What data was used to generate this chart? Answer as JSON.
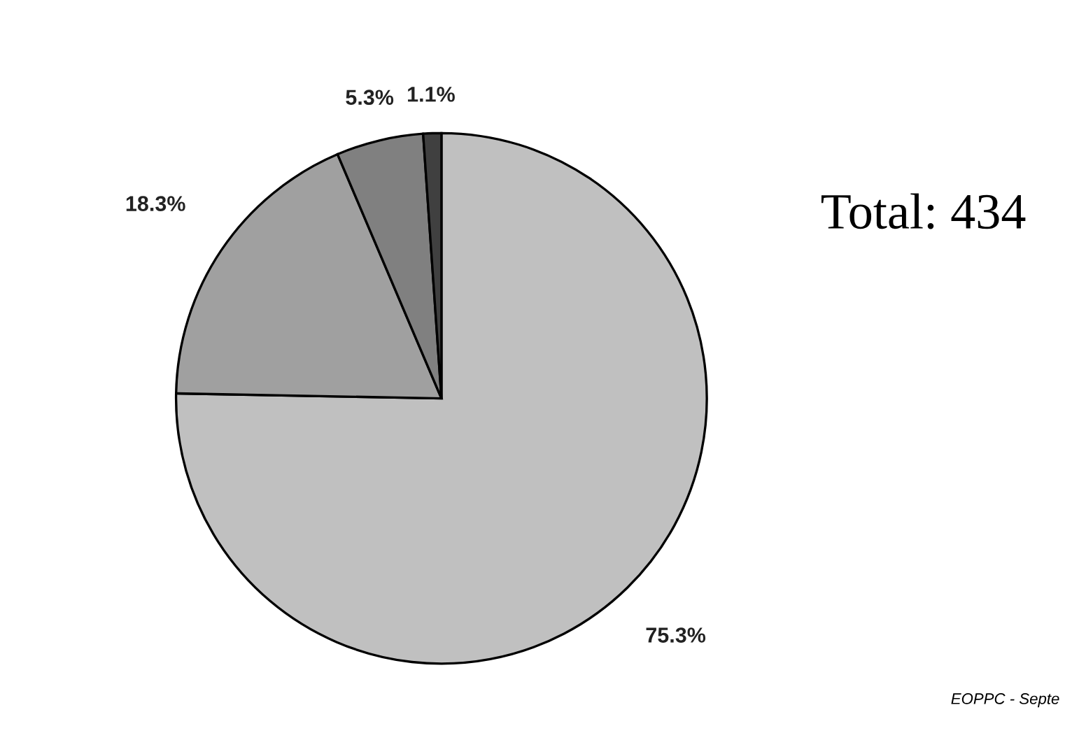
{
  "chart_data": {
    "type": "pie",
    "categories": [
      null,
      null,
      null,
      null
    ],
    "values": [
      75.3,
      18.3,
      5.3,
      1.1
    ],
    "colors": [
      "#c0c0c0",
      "#a0a0a0",
      "#808080",
      "#404040"
    ],
    "value_labels": [
      "75.3%",
      "18.3%",
      "5.3%",
      "1.1%"
    ],
    "annotations": [
      "Total: 434",
      "EOPPC - Septe"
    ],
    "legend": false
  }
}
